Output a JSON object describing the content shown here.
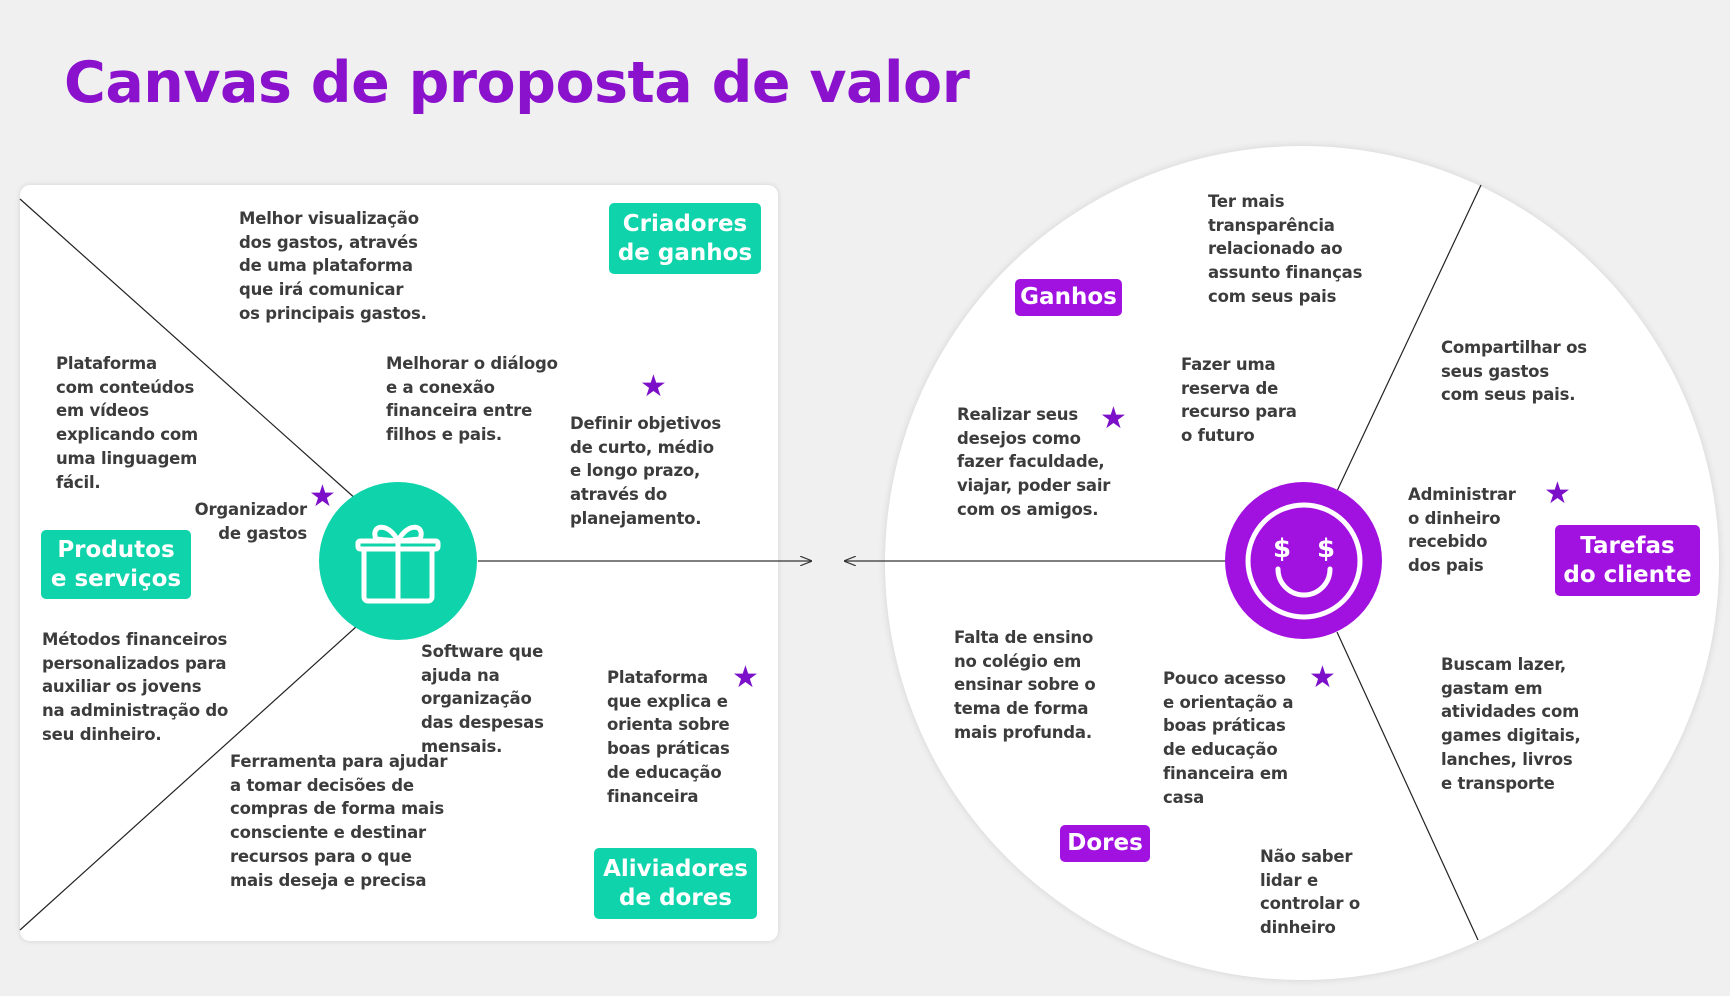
{
  "title": "Canvas de proposta de valor",
  "colors": {
    "accent_teal": "#0fd3aa",
    "accent_purple": "#a112e0",
    "star": "#7b10c8",
    "title": "#8a12cc",
    "text": "#3c3c3c"
  },
  "value_map": {
    "icon": "gift-icon",
    "badges": {
      "gain_creators": "Criadores\nde ganhos",
      "products_services": "Produtos\ne serviços",
      "pain_relievers": "Aliviadores\nde dores"
    },
    "notes": {
      "melhor_visualizacao": "Melhor visualização\ndos gastos, através\nde uma plataforma\nque irá comunicar\nos principais gastos.",
      "plataforma_videos": "Plataforma\ncom conteúdos\nem vídeos\nexplicando com\numa linguagem\nfácil.",
      "melhorar_dialogo": "Melhorar o diálogo\ne a conexão\nfinanceira entre\nfilhos e pais.",
      "definir_objetivos": "Definir objetivos\nde curto, médio\ne longo prazo,\natravés do\nplanejamento.",
      "organizador": "Organizador\nde gastos",
      "metodos": "Métodos financeiros\npersonalizados para\nauxiliar os jovens\nna administração do\nseu dinheiro.",
      "software": "Software que\najuda na\norganização\ndas despesas\nmensais.",
      "plataforma_explica": "Plataforma\nque explica e\norienta sobre\nboas práticas\nde educação\nfinanceira",
      "ferramenta": "Ferramenta para ajudar\n a tomar decisões de\ncompras de forma mais\nconsciente e destinar\nrecursos para o que\nmais deseja e precisa"
    }
  },
  "customer_profile": {
    "icon": "smiley-dollar-icon",
    "badges": {
      "gains": "Ganhos",
      "customer_jobs": "Tarefas\ndo cliente",
      "pains": "Dores"
    },
    "notes": {
      "ter_mais": "Ter mais\ntransparência\nrelacionado ao\nassunto finanças\ncom seus pais",
      "compartilhar": "Compartilhar os\nseus gastos\ncom seus pais.",
      "fazer_reserva": "Fazer uma\nreserva de\nrecurso para\no futuro",
      "realizar": "Realizar seus\ndesejos como\nfazer faculdade,\nviajar, poder sair\ncom os amigos.",
      "administrar": "Administrar\no dinheiro\nrecebido\ndos pais",
      "falta_ensino": "Falta de ensino\nno colégio em\nensinar sobre o\ntema de forma\nmais profunda.",
      "pouco_acesso": "Pouco acesso\ne orientação a\nboas práticas\nde educação\nfinanceira em\ncasa",
      "buscam_lazer": "Buscam lazer,\ngastam em\natividades com\ngames digitais,\nlanches, livros\ne transporte",
      "nao_saber": "Não saber\nlidar e\ncontrolar o\ndinheiro"
    }
  }
}
